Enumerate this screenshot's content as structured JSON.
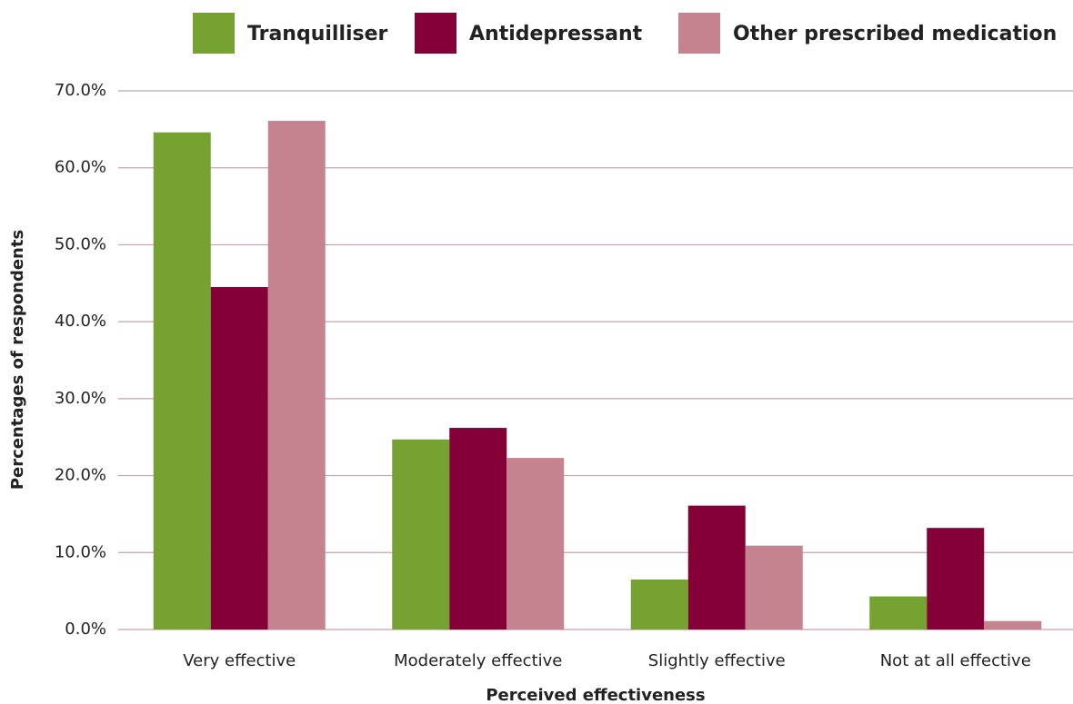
{
  "chart_data": {
    "type": "bar",
    "xlabel": "Perceived effectiveness",
    "ylabel": "Percentages of respondents",
    "categories": [
      "Very effective",
      "Moderately effective",
      "Slightly effective",
      "Not at all effective"
    ],
    "series": [
      {
        "name": "Tranquilliser",
        "color": "#76a232",
        "values": [
          64.6,
          24.7,
          6.5,
          4.3
        ]
      },
      {
        "name": "Antidepressant",
        "color": "#850036",
        "values": [
          44.5,
          26.2,
          16.1,
          13.2
        ]
      },
      {
        "name": "Other prescribed medication",
        "color": "#c4838e",
        "values": [
          66.1,
          22.3,
          10.9,
          1.1
        ]
      }
    ],
    "ylim": [
      0,
      70
    ],
    "yticks": [
      {
        "value": 0,
        "label": "0.0%"
      },
      {
        "value": 10,
        "label": "10.0%"
      },
      {
        "value": 20,
        "label": "20.0%"
      },
      {
        "value": 30,
        "label": "30.0%"
      },
      {
        "value": 40,
        "label": "40.0%"
      },
      {
        "value": 50,
        "label": "50.0%"
      },
      {
        "value": 60,
        "label": "60.0%"
      },
      {
        "value": 70,
        "label": "70.0%"
      }
    ],
    "grid": true,
    "legend": "top"
  }
}
